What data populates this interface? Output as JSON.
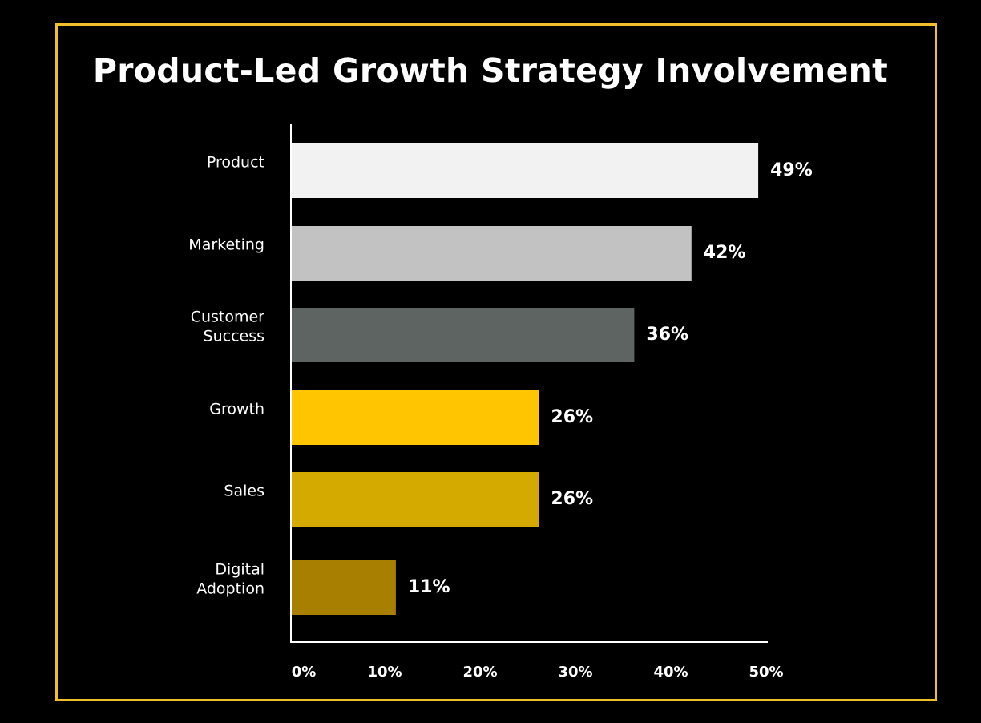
{
  "chart_data": {
    "type": "bar",
    "orientation": "horizontal",
    "title": "Product-Led Growth Strategy Involvement",
    "xlabel": "",
    "ylabel": "",
    "xlim": [
      0,
      50
    ],
    "categories": [
      [
        "Product"
      ],
      [
        "Marketing"
      ],
      [
        "Customer",
        "Success"
      ],
      [
        "Growth"
      ],
      [
        "Sales"
      ],
      [
        "Digital",
        "Adoption"
      ]
    ],
    "values": [
      49,
      42,
      36,
      26,
      26,
      11
    ],
    "value_labels": [
      "49%",
      "42%",
      "36%",
      "26%",
      "26%",
      "11%"
    ],
    "bar_colors": [
      "#f2f2f2",
      "#c2c2c2",
      "#5e6462",
      "#ffc600",
      "#d4aa00",
      "#a97f00"
    ],
    "ticks": [
      0,
      10,
      20,
      30,
      40,
      50
    ],
    "tick_labels": [
      "0%",
      "10%",
      "20%",
      "30%",
      "40%",
      "50%"
    ],
    "grid": false,
    "legend": "none"
  },
  "colors": {
    "background": "#000000",
    "frame": "#f3be2c",
    "text": "#ffffff",
    "axis": "#ffffff"
  }
}
